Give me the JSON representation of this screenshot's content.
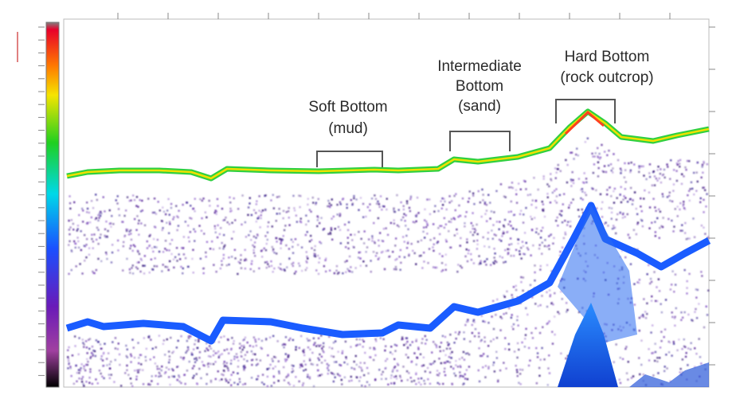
{
  "annotations": [
    {
      "lines": [
        "Soft Bottom",
        "(mud)"
      ]
    },
    {
      "lines": [
        "Intermediate",
        "Bottom",
        "(sand)"
      ]
    },
    {
      "lines": [
        "Hard Bottom",
        "(rock outcrop)"
      ]
    }
  ]
}
